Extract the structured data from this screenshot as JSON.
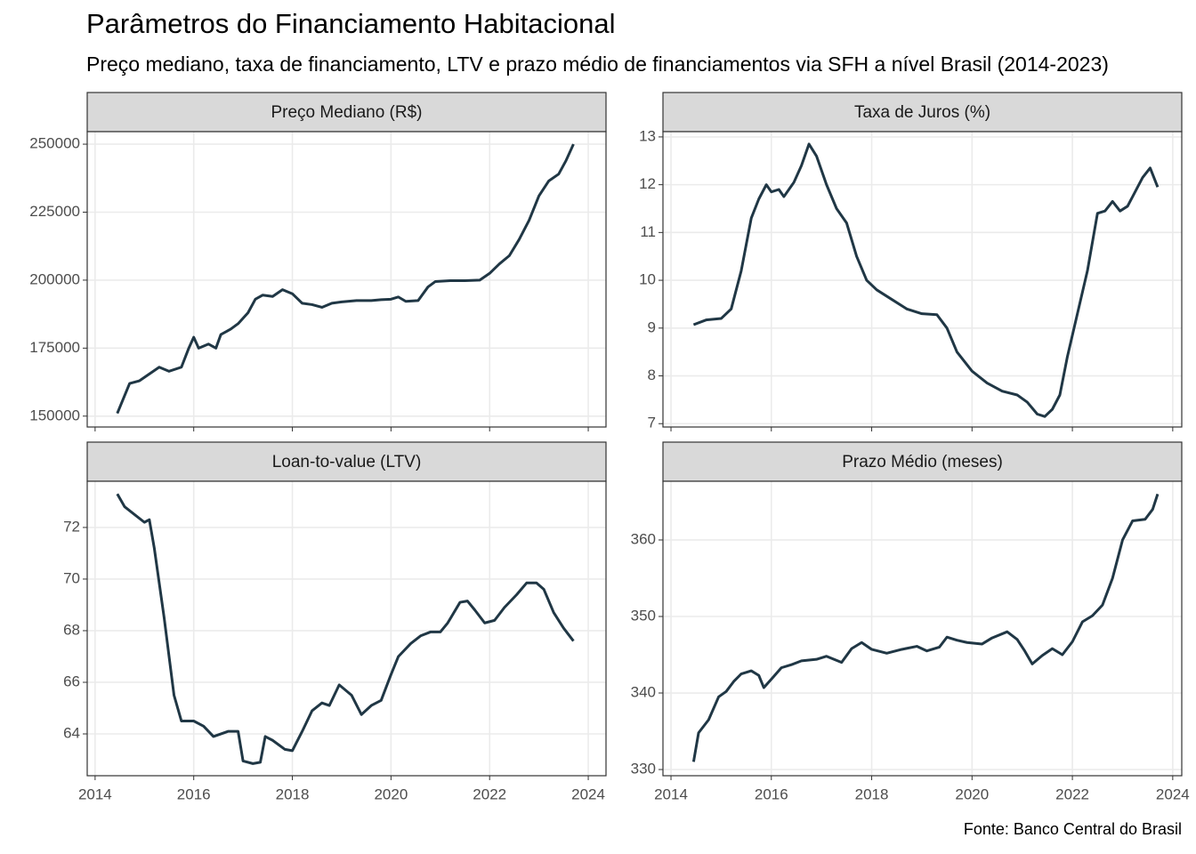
{
  "title": "Parâmetros do Financiamento Habitacional",
  "subtitle": "Preço mediano, taxa de financiamento, LTV e prazo médio de financiamentos via SFH a nível Brasil (2014-2023)",
  "caption": "Fonte: Banco Central do Brasil",
  "chart_data": [
    {
      "type": "line",
      "title": "Preço Mediano (R$)",
      "color": "#203745",
      "grid": true,
      "xlim": [
        2013.84,
        2024.36
      ],
      "xticks": [
        2014,
        2016,
        2018,
        2020,
        2022,
        2024
      ],
      "ylim": [
        146000,
        254600
      ],
      "yticks": [
        150000,
        175000,
        200000,
        225000,
        250000
      ],
      "x": [
        2014.45,
        2014.7,
        2014.9,
        2015.1,
        2015.3,
        2015.5,
        2015.75,
        2015.9,
        2016.0,
        2016.1,
        2016.3,
        2016.45,
        2016.55,
        2016.75,
        2016.9,
        2017.1,
        2017.25,
        2017.4,
        2017.6,
        2017.8,
        2018.0,
        2018.2,
        2018.4,
        2018.6,
        2018.8,
        2019.0,
        2019.3,
        2019.6,
        2019.8,
        2020.0,
        2020.15,
        2020.3,
        2020.55,
        2020.75,
        2020.9,
        2021.2,
        2021.5,
        2021.8,
        2022.0,
        2022.2,
        2022.4,
        2022.6,
        2022.8,
        2023.0,
        2023.2,
        2023.4,
        2023.55,
        2023.7
      ],
      "values": [
        151000,
        162000,
        163000,
        165500,
        168000,
        166500,
        168000,
        175000,
        179000,
        175000,
        176500,
        175000,
        180000,
        182000,
        184000,
        188000,
        193000,
        194500,
        194000,
        196500,
        195000,
        191500,
        191000,
        190000,
        191500,
        192000,
        192500,
        192500,
        192800,
        193000,
        193800,
        192200,
        192500,
        197500,
        199500,
        199800,
        199800,
        200000,
        202500,
        206000,
        209000,
        215000,
        222000,
        231000,
        236500,
        239000,
        244000,
        250000
      ]
    },
    {
      "type": "line",
      "title": "Taxa de Juros (%)",
      "color": "#203745",
      "grid": true,
      "xlim": [
        2013.84,
        2024.18
      ],
      "xticks": [
        2014,
        2016,
        2018,
        2020,
        2022,
        2024
      ],
      "ylim": [
        6.93,
        13.11
      ],
      "yticks": [
        7,
        8,
        9,
        10,
        11,
        12,
        13
      ],
      "x": [
        2014.45,
        2014.7,
        2015.0,
        2015.2,
        2015.4,
        2015.6,
        2015.75,
        2015.9,
        2016.0,
        2016.15,
        2016.25,
        2016.45,
        2016.6,
        2016.75,
        2016.9,
        2017.1,
        2017.3,
        2017.5,
        2017.7,
        2017.9,
        2018.1,
        2018.4,
        2018.7,
        2019.0,
        2019.3,
        2019.5,
        2019.7,
        2020.0,
        2020.3,
        2020.6,
        2020.9,
        2021.1,
        2021.3,
        2021.45,
        2021.6,
        2021.75,
        2021.9,
        2022.1,
        2022.3,
        2022.5,
        2022.65,
        2022.8,
        2022.95,
        2023.1,
        2023.25,
        2023.4,
        2023.55,
        2023.7
      ],
      "values": [
        9.07,
        9.17,
        9.2,
        9.4,
        10.2,
        11.3,
        11.7,
        12.0,
        11.85,
        11.9,
        11.75,
        12.05,
        12.4,
        12.85,
        12.6,
        12.0,
        11.5,
        11.2,
        10.5,
        10.0,
        9.8,
        9.6,
        9.4,
        9.3,
        9.28,
        9.0,
        8.5,
        8.1,
        7.85,
        7.68,
        7.6,
        7.45,
        7.2,
        7.15,
        7.3,
        7.6,
        8.4,
        9.3,
        10.2,
        11.4,
        11.45,
        11.65,
        11.45,
        11.55,
        11.85,
        12.15,
        12.35,
        11.95
      ]
    },
    {
      "type": "line",
      "title": "Loan-to-value (LTV)",
      "color": "#203745",
      "grid": true,
      "xlim": [
        2013.84,
        2024.36
      ],
      "xticks": [
        2014,
        2016,
        2018,
        2020,
        2022,
        2024
      ],
      "ylim": [
        62.38,
        73.79
      ],
      "yticks": [
        64,
        66,
        68,
        70,
        72
      ],
      "x": [
        2014.45,
        2014.6,
        2014.8,
        2015.0,
        2015.1,
        2015.2,
        2015.4,
        2015.6,
        2015.75,
        2016.0,
        2016.2,
        2016.4,
        2016.7,
        2016.9,
        2017.0,
        2017.2,
        2017.35,
        2017.45,
        2017.6,
        2017.85,
        2018.0,
        2018.2,
        2018.4,
        2018.6,
        2018.75,
        2018.95,
        2019.2,
        2019.4,
        2019.6,
        2019.8,
        2020.0,
        2020.15,
        2020.4,
        2020.6,
        2020.8,
        2021.0,
        2021.15,
        2021.4,
        2021.55,
        2021.7,
        2021.9,
        2022.1,
        2022.3,
        2022.55,
        2022.75,
        2022.95,
        2023.1,
        2023.3,
        2023.5,
        2023.7
      ],
      "values": [
        73.3,
        72.8,
        72.5,
        72.2,
        72.3,
        71.2,
        68.5,
        65.5,
        64.5,
        64.5,
        64.3,
        63.9,
        64.1,
        64.1,
        62.95,
        62.85,
        62.9,
        63.9,
        63.75,
        63.4,
        63.35,
        64.1,
        64.9,
        65.2,
        65.1,
        65.9,
        65.5,
        64.75,
        65.1,
        65.3,
        66.3,
        67.0,
        67.5,
        67.8,
        67.95,
        67.95,
        68.3,
        69.1,
        69.15,
        68.8,
        68.3,
        68.4,
        68.9,
        69.4,
        69.85,
        69.85,
        69.6,
        68.7,
        68.1,
        67.6
      ]
    },
    {
      "type": "line",
      "title": "Prazo Médio (meses)",
      "color": "#203745",
      "grid": true,
      "xlim": [
        2013.84,
        2024.18
      ],
      "xticks": [
        2014,
        2016,
        2018,
        2020,
        2022,
        2024
      ],
      "ylim": [
        329.19,
        367.67
      ],
      "yticks": [
        330,
        340,
        350,
        360
      ],
      "x": [
        2014.45,
        2014.55,
        2014.75,
        2014.95,
        2015.1,
        2015.25,
        2015.4,
        2015.6,
        2015.75,
        2015.85,
        2016.0,
        2016.2,
        2016.4,
        2016.6,
        2016.9,
        2017.1,
        2017.4,
        2017.6,
        2017.8,
        2018.0,
        2018.3,
        2018.6,
        2018.9,
        2019.1,
        2019.35,
        2019.5,
        2019.7,
        2019.9,
        2020.2,
        2020.4,
        2020.7,
        2020.9,
        2021.05,
        2021.2,
        2021.4,
        2021.6,
        2021.8,
        2022.0,
        2022.2,
        2022.4,
        2022.6,
        2022.8,
        2023.0,
        2023.2,
        2023.45,
        2023.6,
        2023.7
      ],
      "values": [
        331,
        334.8,
        336.5,
        339.5,
        340.2,
        341.5,
        342.5,
        342.9,
        342.3,
        340.7,
        341.8,
        343.3,
        343.7,
        344.2,
        344.4,
        344.8,
        344.0,
        345.8,
        346.6,
        345.7,
        345.2,
        345.7,
        346.1,
        345.5,
        346.0,
        347.3,
        346.9,
        346.6,
        346.4,
        347.2,
        348.0,
        347.0,
        345.5,
        343.8,
        344.9,
        345.8,
        345.0,
        346.7,
        349.3,
        350.1,
        351.5,
        355.0,
        360.0,
        362.5,
        362.7,
        364.0,
        366
      ]
    }
  ]
}
